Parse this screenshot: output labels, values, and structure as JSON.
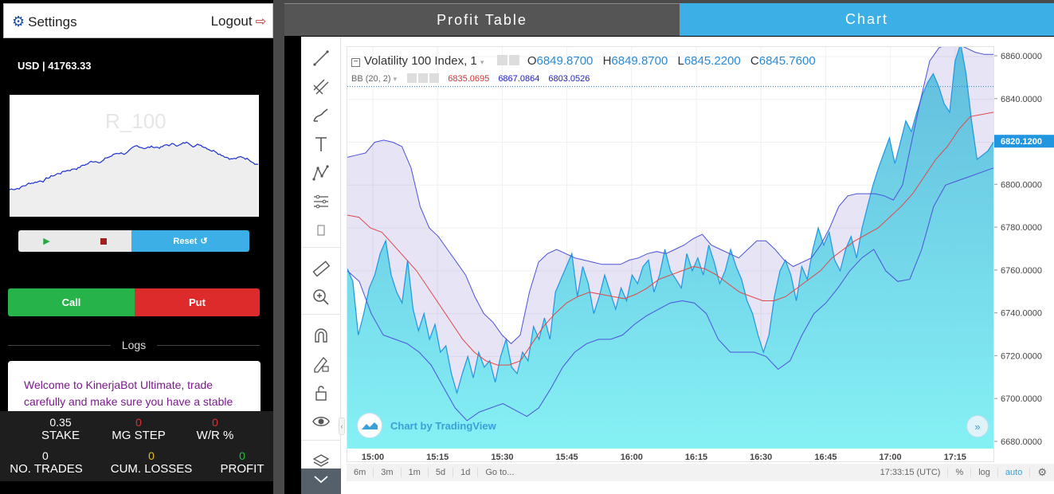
{
  "header": {
    "settings_label": "Settings",
    "logout_label": "Logout"
  },
  "account": {
    "balance": "USD | 41763.33",
    "mini_chart_watermark": "R_100"
  },
  "controls": {
    "reset_label": "Reset"
  },
  "trade": {
    "call_label": "Call",
    "put_label": "Put"
  },
  "logs": {
    "title": "Logs",
    "message": "Welcome to KinerjaBot Ultimate, trade carefully and make sure you have a stable"
  },
  "stats": {
    "stake": {
      "value": "0.35",
      "label": "STAKE",
      "color": "#ffffff"
    },
    "mg_step": {
      "value": "0",
      "label": "MG STEP",
      "color": "#e03030"
    },
    "wr": {
      "value": "0",
      "label": "W/R %",
      "color": "#e03030"
    },
    "trades": {
      "value": "0",
      "label": "NO. TRADES",
      "color": "#ffffff"
    },
    "cum_losses": {
      "value": "0",
      "label": "CUM. LOSSES",
      "color": "#e0c020"
    },
    "profit": {
      "value": "0",
      "label": "PROFIT",
      "color": "#20c040"
    }
  },
  "tabs": {
    "profit_table": "Profit Table",
    "chart": "Chart"
  },
  "chart_header": {
    "symbol": "Volatility 100 Index, 1",
    "o_label": "O",
    "o_value": "6849.8700",
    "h_label": "H",
    "h_value": "6849.8700",
    "l_label": "L",
    "l_value": "6845.2200",
    "c_label": "C",
    "c_value": "6845.7600",
    "bb_label": "BB (20, 2)",
    "bb_mid": "6835.0695",
    "bb_upper": "6867.0864",
    "bb_lower": "6803.0526",
    "watermark": "Chart by TradingView"
  },
  "bottom_bar": {
    "ranges": [
      "6m",
      "3m",
      "1m",
      "5d",
      "1d"
    ],
    "goto": "Go to...",
    "clock": "17:33:15 (UTC)",
    "percent": "%",
    "log": "log",
    "auto": "auto"
  },
  "colors": {
    "accent": "#3cb0e6",
    "call": "#26b34a",
    "put": "#dd2b2b"
  },
  "chart_data": {
    "type": "area",
    "x_ticks": [
      "15:00",
      "15:15",
      "15:30",
      "15:45",
      "16:00",
      "16:15",
      "16:30",
      "16:45",
      "17:00",
      "17:15"
    ],
    "y_ticks": [
      6860,
      6840,
      6820,
      6800,
      6780,
      6760,
      6740,
      6720,
      6700,
      6680
    ],
    "y_tick_labels": [
      "6860.0000",
      "6840.0000",
      "6820.0000",
      "6800.0000",
      "6780.0000",
      "6760.0000",
      "6740.0000",
      "6720.0000",
      "6700.0000",
      "6680.0000"
    ],
    "ylim": [
      6677,
      6860
    ],
    "xlim": [
      0,
      150
    ],
    "last_price_label": "6820.1200",
    "last_price": 6820.12,
    "dotted_level": 6846,
    "series": [
      {
        "values": [
          6761,
          6755,
          6730,
          6740,
          6752,
          6758,
          6768,
          6774,
          6758,
          6750,
          6745,
          6765,
          6742,
          6732,
          6740,
          6728,
          6735,
          6722,
          6725,
          6712,
          6703,
          6712,
          6720,
          6710,
          6722,
          6715,
          6718,
          6708,
          6720,
          6728,
          6715,
          6712,
          6722,
          6718,
          6734,
          6728,
          6738,
          6728,
          6750,
          6756,
          6762,
          6768,
          6748,
          6762,
          6754,
          6740,
          6748,
          6758,
          6750,
          6742,
          6752,
          6746,
          6758,
          6754,
          6762,
          6765,
          6750,
          6758,
          6770,
          6760,
          6756,
          6752,
          6768,
          6760,
          6766,
          6758,
          6772,
          6764,
          6754,
          6760,
          6770,
          6762,
          6756,
          6746,
          6740,
          6730,
          6722,
          6730,
          6748,
          6760,
          6765,
          6758,
          6746,
          6762,
          6756,
          6770,
          6780,
          6772,
          6778,
          6765,
          6760,
          6770,
          6776,
          6766,
          6780,
          6790,
          6800,
          6808,
          6815,
          6822,
          6810,
          6820,
          6830,
          6825,
          6834,
          6842,
          6848,
          6852,
          6846,
          6838,
          6834,
          6858,
          6866,
          6852,
          6830,
          6812,
          6814,
          6816,
          6820
        ]
      }
    ],
    "bb_upper": [
      6813,
      6814,
      6815,
      6820,
      6821,
      6820,
      6818,
      6808,
      6790,
      6780,
      6776,
      6770,
      6764,
      6758,
      6748,
      6740,
      6736,
      6730,
      6726,
      6730,
      6750,
      6764,
      6768,
      6770,
      6768,
      6766,
      6765,
      6764,
      6763,
      6763,
      6763,
      6765,
      6766,
      6768,
      6769,
      6768,
      6770,
      6772,
      6775,
      6777,
      6772,
      6770,
      6768,
      6766,
      6770,
      6774,
      6774,
      6770,
      6765,
      6762,
      6764,
      6766,
      6772,
      6780,
      6790,
      6795,
      6796,
      6796,
      6796,
      6795,
      6793,
      6800,
      6820,
      6840,
      6858,
      6864,
      6866,
      6866,
      6864,
      6862,
      6861,
      6861
    ],
    "bb_middle": [
      6786,
      6785,
      6780,
      6778,
      6772,
      6766,
      6760,
      6752,
      6744,
      6736,
      6728,
      6722,
      6718,
      6716,
      6716,
      6718,
      6726,
      6734,
      6740,
      6745,
      6748,
      6750,
      6749,
      6748,
      6747,
      6749,
      6752,
      6756,
      6758,
      6760,
      6762,
      6761,
      6758,
      6754,
      6750,
      6748,
      6746,
      6746,
      6748,
      6752,
      6756,
      6760,
      6766,
      6770,
      6774,
      6777,
      6780,
      6785,
      6790,
      6796,
      6804,
      6812,
      6818,
      6826,
      6832,
      6833,
      6834
    ],
    "bb_lower": [
      6760,
      6755,
      6740,
      6730,
      6728,
      6726,
      6722,
      6716,
      6706,
      6696,
      6690,
      6694,
      6696,
      6698,
      6695,
      6692,
      6696,
      6705,
      6715,
      6722,
      6726,
      6728,
      6728,
      6730,
      6735,
      6739,
      6742,
      6745,
      6746,
      6745,
      6740,
      6728,
      6722,
      6722,
      6722,
      6720,
      6714,
      6718,
      6730,
      6740,
      6745,
      6752,
      6760,
      6766,
      6770,
      6760,
      6755,
      6756,
      6770,
      6790,
      6800,
      6802,
      6804,
      6806,
      6808
    ]
  }
}
